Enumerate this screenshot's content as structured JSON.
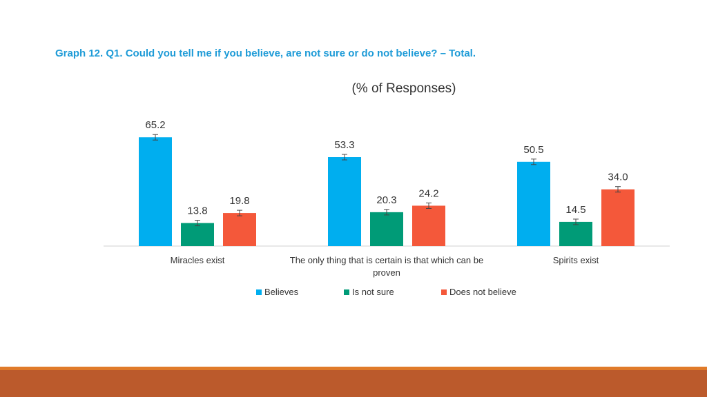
{
  "header": {
    "title": "Graph 12. Q1. Could you tell me if you believe, are not sure or do not believe? – Total."
  },
  "chart_data": {
    "type": "bar",
    "title": "(% of Responses)",
    "categories": [
      "Miracles exist",
      "The only thing that is certain is that which can be proven",
      "Spirits exist"
    ],
    "series": [
      {
        "name": "Believes",
        "values": [
          65.2,
          53.3,
          50.5
        ],
        "color": "#00aeef"
      },
      {
        "name": "Is not sure",
        "values": [
          13.8,
          20.3,
          14.5
        ],
        "color": "#009b77"
      },
      {
        "name": "Does not believe",
        "values": [
          19.8,
          24.2,
          34.0
        ],
        "color": "#f4583a"
      }
    ],
    "data_labels": [
      [
        "65.2",
        "53.3",
        "50.5"
      ],
      [
        "13.8",
        "20.3",
        "14.5"
      ],
      [
        "19.8",
        "24.2",
        "34.0"
      ]
    ],
    "error_bars": true,
    "ylim": [
      0,
      65.2
    ],
    "xlabel": "",
    "ylabel": "",
    "grid": false,
    "legend_position": "bottom"
  },
  "theme": {
    "title_color": "#1e9bd7",
    "footer_accent": "#e07b2a",
    "footer_color": "#bb5a2c"
  }
}
